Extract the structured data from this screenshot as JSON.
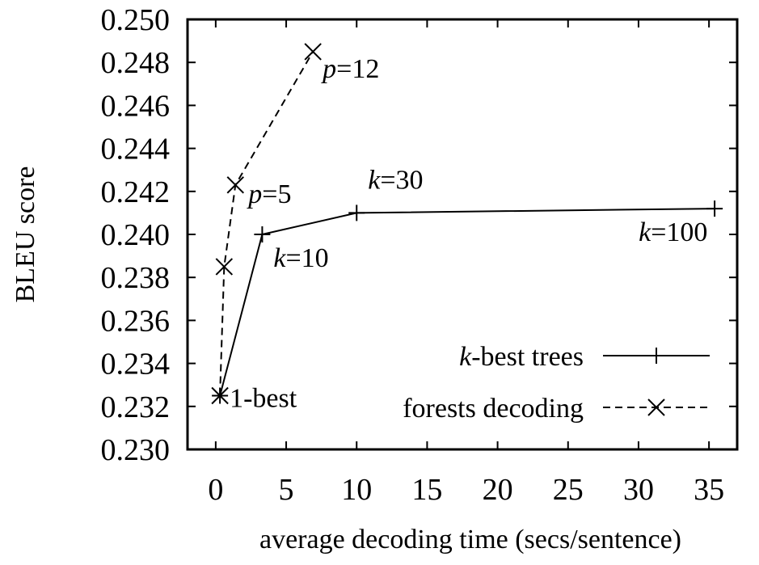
{
  "chart_data": {
    "type": "line",
    "xlabel": "average decoding time (secs/sentence)",
    "ylabel": "BLEU score",
    "xlim": [
      -2,
      37
    ],
    "ylim": [
      0.23,
      0.25
    ],
    "x_ticks": [
      "0",
      "5",
      "10",
      "15",
      "20",
      "25",
      "30",
      "35"
    ],
    "y_ticks": [
      "0.230",
      "0.232",
      "0.234",
      "0.236",
      "0.238",
      "0.240",
      "0.242",
      "0.244",
      "0.246",
      "0.248",
      "0.250"
    ],
    "grid": false,
    "legend_position": "bottom-right",
    "series": [
      {
        "name_prefix": "k",
        "name_rest": "-best trees",
        "style": "solid",
        "marker": "plus",
        "points": [
          {
            "x": 0.3,
            "y": 0.2325
          },
          {
            "x": 3.3,
            "y": 0.24
          },
          {
            "x": 10.0,
            "y": 0.241
          },
          {
            "x": 35.4,
            "y": 0.2412
          }
        ]
      },
      {
        "name": "forests decoding",
        "style": "dashed",
        "marker": "cross",
        "points": [
          {
            "x": 0.3,
            "y": 0.2325
          },
          {
            "x": 0.6,
            "y": 0.2385
          },
          {
            "x": 1.4,
            "y": 0.2423
          },
          {
            "x": 6.9,
            "y": 0.2485
          }
        ]
      }
    ],
    "annotations": [
      {
        "var": "",
        "rest": "1-best",
        "x": 0.3,
        "y": 0.2325
      },
      {
        "var": "k",
        "rest": "=10",
        "x": 3.3,
        "y": 0.24
      },
      {
        "var": "k",
        "rest": "=30",
        "x": 10.0,
        "y": 0.241
      },
      {
        "var": "k",
        "rest": "=100",
        "x": 35.4,
        "y": 0.2412
      },
      {
        "var": "p",
        "rest": "=5",
        "x": 1.4,
        "y": 0.2423
      },
      {
        "var": "p",
        "rest": "=12",
        "x": 6.9,
        "y": 0.2485
      }
    ]
  }
}
